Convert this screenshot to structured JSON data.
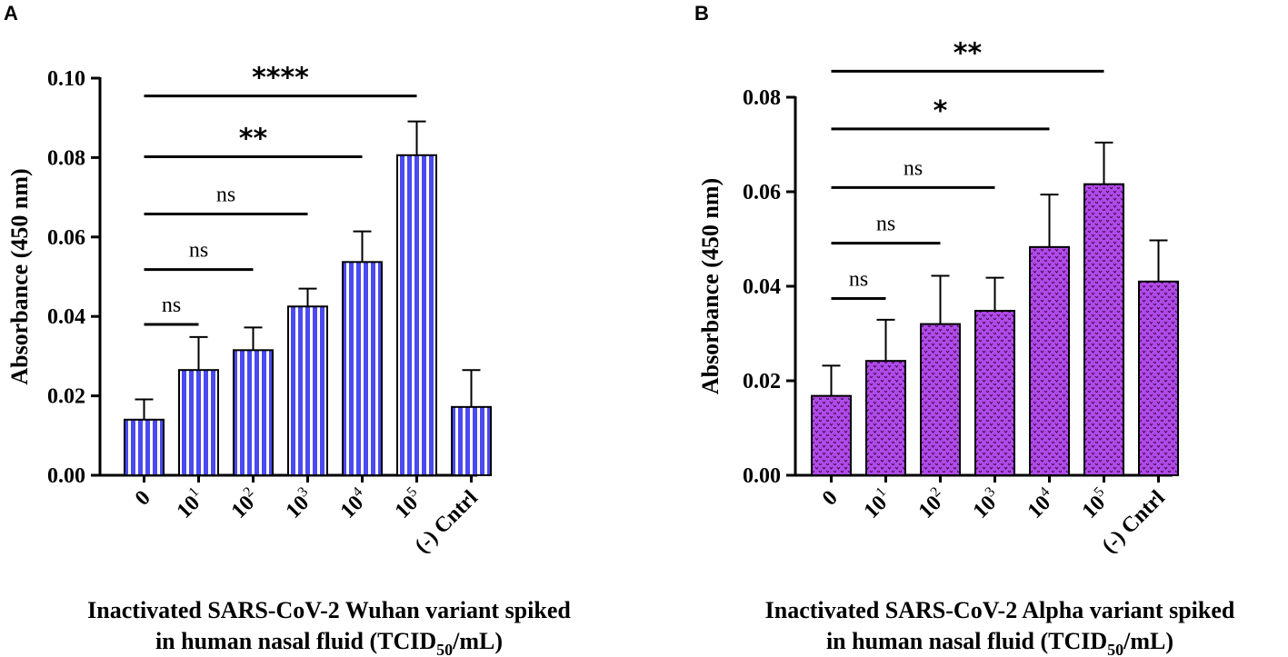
{
  "chart_data": [
    {
      "panel": "A",
      "type": "bar",
      "title": "",
      "ylabel": "Absorbance  (450 nm)",
      "xlabel_line1": "Inactivated SARS-CoV-2 Wuhan variant spiked",
      "xlabel_line2_pre": "in human nasal fluid (TCID",
      "xlabel_line2_sub": "50",
      "xlabel_line2_post": "/mL)",
      "ylim": [
        0,
        0.1
      ],
      "yticks": [
        "0.00",
        "0.02",
        "0.04",
        "0.06",
        "0.08",
        "0.10"
      ],
      "categories": [
        {
          "base": "0",
          "exp": ""
        },
        {
          "base": "10",
          "exp": "1"
        },
        {
          "base": "10",
          "exp": "2"
        },
        {
          "base": "10",
          "exp": "3"
        },
        {
          "base": "10",
          "exp": "4"
        },
        {
          "base": "10",
          "exp": "5"
        },
        {
          "base": "(-) Cntrl",
          "exp": ""
        }
      ],
      "values": [
        0.014,
        0.0265,
        0.0315,
        0.0425,
        0.0537,
        0.0806,
        0.0172
      ],
      "errors": [
        0.0051,
        0.0083,
        0.0057,
        0.0045,
        0.0077,
        0.0085,
        0.0093
      ],
      "bar_color": "#4a4af0",
      "pattern": "stripes",
      "significance": [
        {
          "from": 0,
          "to": 1,
          "label": "ns",
          "y": 0.038
        },
        {
          "from": 0,
          "to": 2,
          "label": "ns",
          "y": 0.0518
        },
        {
          "from": 0,
          "to": 3,
          "label": "ns",
          "y": 0.0658
        },
        {
          "from": 0,
          "to": 4,
          "label": "**",
          "y": 0.0802
        },
        {
          "from": 0,
          "to": 5,
          "label": "****",
          "y": 0.0955
        }
      ]
    },
    {
      "panel": "B",
      "type": "bar",
      "title": "",
      "ylabel": "Absorbance  (450 nm)",
      "xlabel_line1": "Inactivated SARS-CoV-2 Alpha variant spiked",
      "xlabel_line2_pre": "in human nasal fluid (TCID",
      "xlabel_line2_sub": "50",
      "xlabel_line2_post": "/mL)",
      "ylim": [
        0,
        0.08
      ],
      "yticks": [
        "0.00",
        "0.02",
        "0.04",
        "0.06",
        "0.08"
      ],
      "categories": [
        {
          "base": "0",
          "exp": ""
        },
        {
          "base": "10",
          "exp": "1"
        },
        {
          "base": "10",
          "exp": "2"
        },
        {
          "base": "10",
          "exp": "3"
        },
        {
          "base": "10",
          "exp": "4"
        },
        {
          "base": "10",
          "exp": "5"
        },
        {
          "base": "(-) Cntrl",
          "exp": ""
        }
      ],
      "values": [
        0.0168,
        0.0242,
        0.032,
        0.0348,
        0.0483,
        0.0616,
        0.041
      ],
      "errors": [
        0.0064,
        0.0087,
        0.0102,
        0.007,
        0.0111,
        0.0088,
        0.0087
      ],
      "bar_color": "#b04ae8",
      "pattern": "dots",
      "significance": [
        {
          "from": 0,
          "to": 1,
          "label": "ns",
          "y": 0.0374
        },
        {
          "from": 0,
          "to": 2,
          "label": "ns",
          "y": 0.0491
        },
        {
          "from": 0,
          "to": 3,
          "label": "ns",
          "y": 0.0609
        },
        {
          "from": 0,
          "to": 4,
          "label": "*",
          "y": 0.0733
        },
        {
          "from": 0,
          "to": 5,
          "label": "**",
          "y": 0.0855
        }
      ]
    }
  ]
}
